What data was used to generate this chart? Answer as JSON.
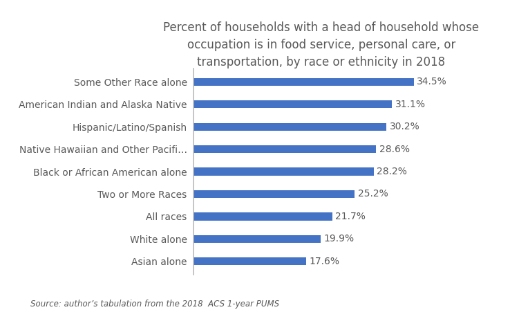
{
  "title": "Percent of households with a head of household whose\noccupation is in food service, personal care, or\ntransportation, by race or ethnicity in 2018",
  "categories": [
    "Asian alone",
    "White alone",
    "All races",
    "Two or More Races",
    "Black or African American alone",
    "Native Hawaiian and Other Pacifi…",
    "Hispanic/Latino/Spanish",
    "American Indian and Alaska Native",
    "Some Other Race alone"
  ],
  "values": [
    17.6,
    19.9,
    21.7,
    25.2,
    28.2,
    28.6,
    30.2,
    31.1,
    34.5
  ],
  "bar_color": "#4472C4",
  "label_color": "#595959",
  "value_color": "#595959",
  "source_text": "Source: author’s tabulation from the 2018  ACS 1-year PUMS",
  "xlim": [
    0,
    40
  ],
  "figsize": [
    7.38,
    4.51
  ],
  "dpi": 100,
  "title_fontsize": 12,
  "label_fontsize": 10,
  "value_fontsize": 10,
  "source_fontsize": 8.5,
  "bar_height": 0.35
}
